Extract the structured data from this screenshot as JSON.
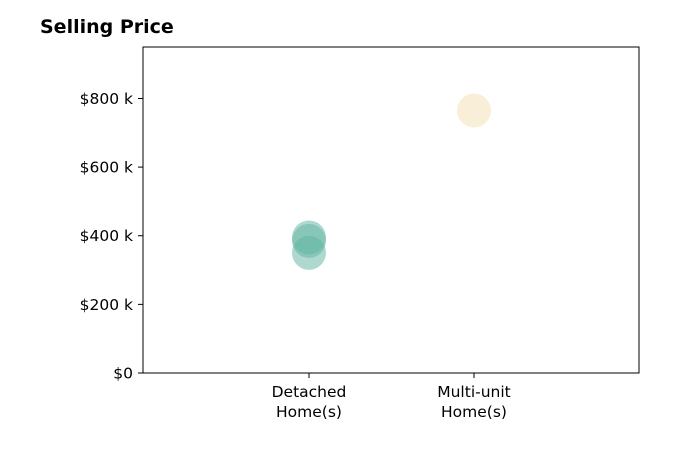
{
  "chart_data": {
    "type": "scatter",
    "title": "Selling Price",
    "xlabel": "",
    "ylabel": "",
    "categories": [
      [
        "Detached",
        "Home(s)"
      ],
      [
        "Multi-unit",
        "Home(s)"
      ]
    ],
    "y_ticks": [
      {
        "value": 0,
        "label": "$0"
      },
      {
        "value": 200000,
        "label": "$200 k"
      },
      {
        "value": 400000,
        "label": "$400 k"
      },
      {
        "value": 600000,
        "label": "$600 k"
      },
      {
        "value": 800000,
        "label": "$800 k"
      }
    ],
    "ylim": [
      0,
      950000
    ],
    "grid": false,
    "points": [
      {
        "category_index": 0,
        "y": 395000,
        "color": "#5fb3a1"
      },
      {
        "category_index": 0,
        "y": 385000,
        "color": "#5fb3a1"
      },
      {
        "category_index": 0,
        "y": 350000,
        "color": "#5fb3a1"
      },
      {
        "category_index": 1,
        "y": 765000,
        "color": "#f3dfb3"
      }
    ]
  }
}
